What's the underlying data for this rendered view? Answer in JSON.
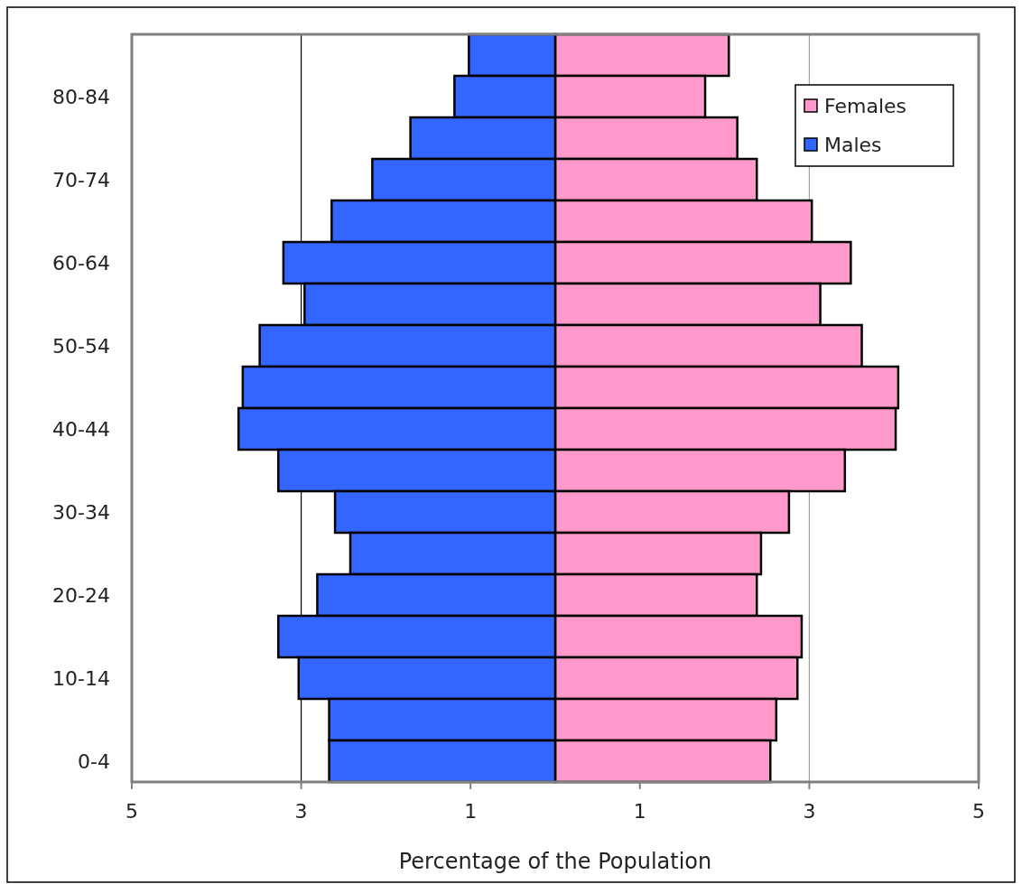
{
  "chart_data": {
    "type": "bar",
    "orientation": "horizontal",
    "stacked": true,
    "xlabel": "Percentage of the Population",
    "categories": [
      null,
      "80-84",
      null,
      "70-74",
      null,
      "60-64",
      null,
      "50-54",
      null,
      "40-44",
      null,
      "30-34",
      null,
      "20-24",
      null,
      "10-14",
      null,
      "0-4"
    ],
    "series": [
      {
        "name": "Females",
        "color": "#ff99cc",
        "values": [
          2.05,
          1.77,
          2.15,
          2.38,
          3.03,
          3.49,
          3.13,
          3.62,
          4.05,
          4.02,
          3.42,
          2.76,
          2.43,
          2.38,
          2.91,
          2.86,
          2.61,
          2.54
        ]
      },
      {
        "name": "Males",
        "color": "#3366ff",
        "values": [
          -1.02,
          -1.19,
          -1.71,
          -2.16,
          -2.64,
          -3.21,
          -2.96,
          -3.49,
          -3.69,
          -3.74,
          -3.27,
          -2.6,
          -2.42,
          -2.81,
          -3.27,
          -3.03,
          -2.67,
          -2.67
        ]
      }
    ],
    "xlim": [
      -5,
      5
    ],
    "xticks": [
      {
        "value": -5,
        "label": "5"
      },
      {
        "value": -3,
        "label": "3"
      },
      {
        "value": -1,
        "label": "1"
      },
      {
        "value": 1,
        "label": "1"
      },
      {
        "value": 3,
        "label": "3"
      },
      {
        "value": 5,
        "label": "5"
      }
    ],
    "ref_lines": [
      {
        "axis": "x",
        "value": -3,
        "color": "#000000"
      },
      {
        "axis": "x",
        "value": 3,
        "color": "#a0a0a0"
      }
    ],
    "legend": "top right"
  }
}
